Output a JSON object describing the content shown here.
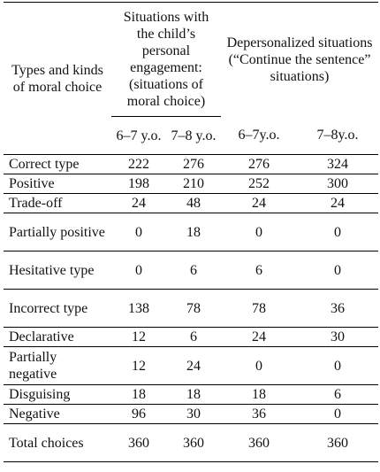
{
  "header": {
    "first_col": "Types and kinds of moral choice",
    "group1": "Situations with the child’s personal engagement: (situations of moral choice)",
    "group2": "Depersonalized situations (“Continue the sentence” situations)",
    "ages": [
      "6–7 y.o.",
      "7–8 y.o.",
      "6–7y.o.",
      "7–8y.o."
    ]
  },
  "rows": [
    {
      "label": "Correct type",
      "values": [
        "222",
        "276",
        "276",
        "324"
      ]
    },
    {
      "label": "Positive",
      "values": [
        "198",
        "210",
        "252",
        "300"
      ]
    },
    {
      "label": "Trade-off",
      "values": [
        "24",
        "48",
        "24",
        "24"
      ]
    },
    {
      "label": "Partially positive",
      "values": [
        "0",
        "18",
        "0",
        "0"
      ]
    },
    {
      "label": "Hesitative type",
      "values": [
        "0",
        "6",
        "6",
        "0"
      ]
    },
    {
      "label": "Incorrect type",
      "values": [
        "138",
        "78",
        "78",
        "36"
      ]
    },
    {
      "label": "Declarative",
      "values": [
        "12",
        "6",
        "24",
        "30"
      ]
    },
    {
      "label": "Partially negative",
      "values": [
        "12",
        "24",
        "0",
        "0"
      ]
    },
    {
      "label": "Disguising",
      "values": [
        "18",
        "18",
        "18",
        "6"
      ]
    },
    {
      "label": "Negative",
      "values": [
        "96",
        "30",
        "36",
        "0"
      ]
    },
    {
      "label": "Total choices",
      "values": [
        "360",
        "360",
        "360",
        "360"
      ]
    }
  ]
}
